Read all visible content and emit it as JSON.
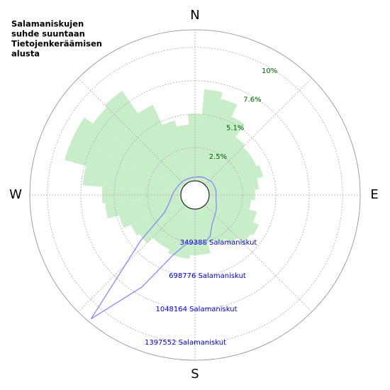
{
  "chart_data": {
    "type": "polar",
    "title": [
      "Salamaniskujen",
      "suhde suuntaan",
      "Tietojenkeräämisen",
      "alusta"
    ],
    "direction_labels": [
      "N",
      "E",
      "S",
      "W"
    ],
    "x": [
      0,
      10,
      20,
      30,
      40,
      50,
      60,
      70,
      80,
      90,
      100,
      110,
      120,
      130,
      140,
      150,
      160,
      170,
      180,
      190,
      200,
      210,
      220,
      230,
      240,
      250,
      260,
      270,
      280,
      290,
      300,
      310,
      320,
      330,
      340,
      350
    ],
    "series": [
      {
        "color": "#c9ecc9",
        "values": [
          5.1,
          7.0,
          6.5,
          5.5,
          4.3,
          4.1,
          4.1,
          4.3,
          3.8,
          3.5,
          3.2,
          3.8,
          4.3,
          4.1,
          3.5,
          3.0,
          2.7,
          3.5,
          3.5,
          3.8,
          3.8,
          3.5,
          3.5,
          4.1,
          4.3,
          4.9,
          5.8,
          6.0,
          7.5,
          9.2,
          9.2,
          8.4,
          8.6,
          6.5,
          4.8,
          4.3
        ]
      },
      {
        "color": "#8080ff",
        "axis": "r2",
        "values": [
          37135,
          44562,
          51989,
          59416,
          59416,
          74270,
          74270,
          74270,
          74270,
          74270,
          74270,
          89124,
          111405,
          133686,
          163394,
          207956,
          311934,
          371350,
          356496,
          371350,
          519890,
          965510,
          1544816,
          594160,
          222810,
          148540,
          111405,
          89124,
          74270,
          59416,
          51989,
          44562,
          44562,
          37135,
          37135,
          37135
        ]
      }
    ],
    "rlim": [
      0,
      11.5
    ],
    "rticks": [
      {
        "value": 2.54,
        "label": "2.5%"
      },
      {
        "value": 5.08,
        "label": "5.1%"
      },
      {
        "value": 7.62,
        "label": "7.6%"
      },
      {
        "value": 10.16,
        "label": "10%"
      }
    ],
    "r2lim": [
      0,
      1581860
    ],
    "r2ticks": [
      {
        "value": 349388,
        "label": "349388 Salamaniskut"
      },
      {
        "value": 698776,
        "label": "698776 Salamaniskut"
      },
      {
        "value": 1048164,
        "label": "1048164 Salamaniskut"
      },
      {
        "value": 1397552,
        "label": "1397552 Salamaniskut"
      }
    ],
    "grid": true
  }
}
